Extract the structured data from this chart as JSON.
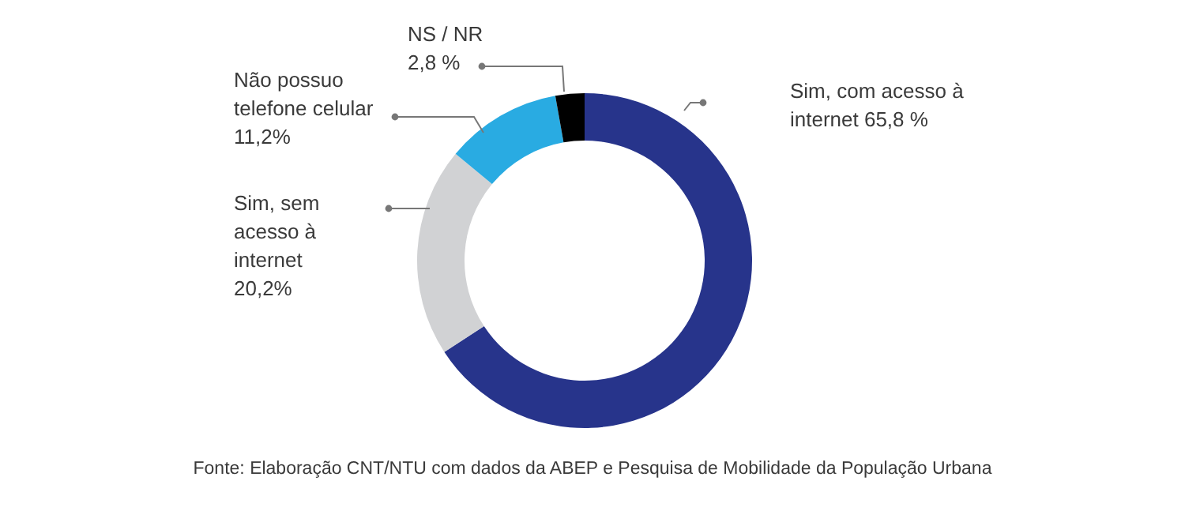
{
  "chart_data": {
    "type": "donut",
    "categories": [
      "Sim, com acesso à internet",
      "Sim, sem acesso à internet",
      "Não possuo telefone celular",
      "NS / NR"
    ],
    "values": [
      65.8,
      20.2,
      11.2,
      2.8
    ],
    "value_labels": [
      "65,8 %",
      "20,2%",
      "11,2%",
      "2,8 %"
    ],
    "colors": [
      "#27348b",
      "#d1d2d4",
      "#29abe2",
      "#000000"
    ],
    "annotations": [
      "Fonte: Elaboração CNT/NTU com dados da ABEP e Pesquisa de Mobilidade da População Urbana"
    ]
  }
}
